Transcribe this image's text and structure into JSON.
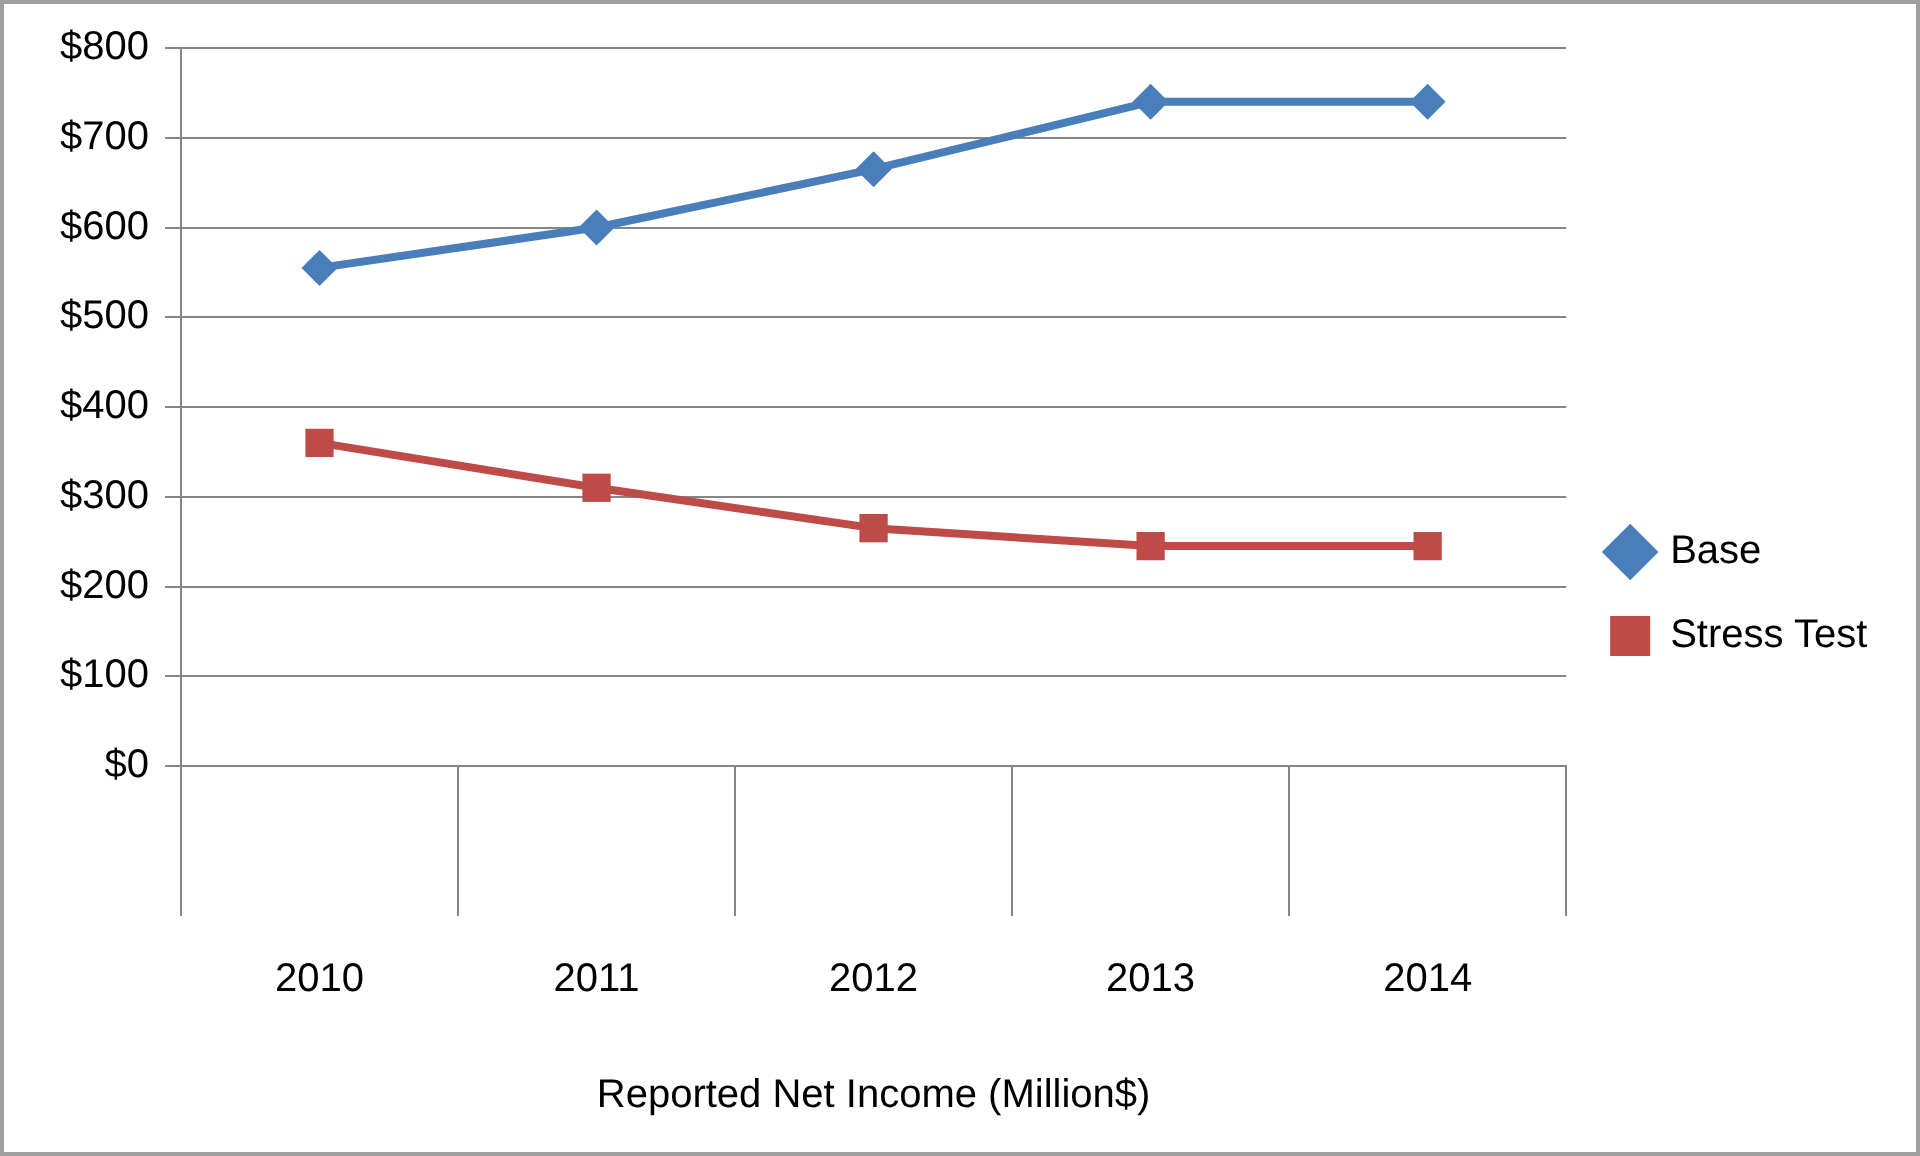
{
  "chart_data": {
    "type": "line",
    "xlabel": "Reported Net Income (Million$)",
    "categories": [
      "2010",
      "2011",
      "2012",
      "2013",
      "2014"
    ],
    "series": [
      {
        "name": "Base",
        "color": "#4a7ebb",
        "marker": "diamond",
        "values": [
          555,
          600,
          665,
          740,
          740
        ]
      },
      {
        "name": "Stress Test",
        "color": "#be4b48",
        "marker": "square",
        "values": [
          360,
          310,
          265,
          245,
          245
        ]
      }
    ],
    "ylim": [
      0,
      800
    ],
    "yticks": [
      {
        "value": 0,
        "label": "$0"
      },
      {
        "value": 100,
        "label": "$100"
      },
      {
        "value": 200,
        "label": "$200"
      },
      {
        "value": 300,
        "label": "$300"
      },
      {
        "value": 400,
        "label": "$400"
      },
      {
        "value": 500,
        "label": "$500"
      },
      {
        "value": 600,
        "label": "$600"
      },
      {
        "value": 700,
        "label": "$700"
      },
      {
        "value": 800,
        "label": "$800"
      }
    ],
    "grid": "y",
    "legend": "right",
    "line_style": "solid"
  }
}
